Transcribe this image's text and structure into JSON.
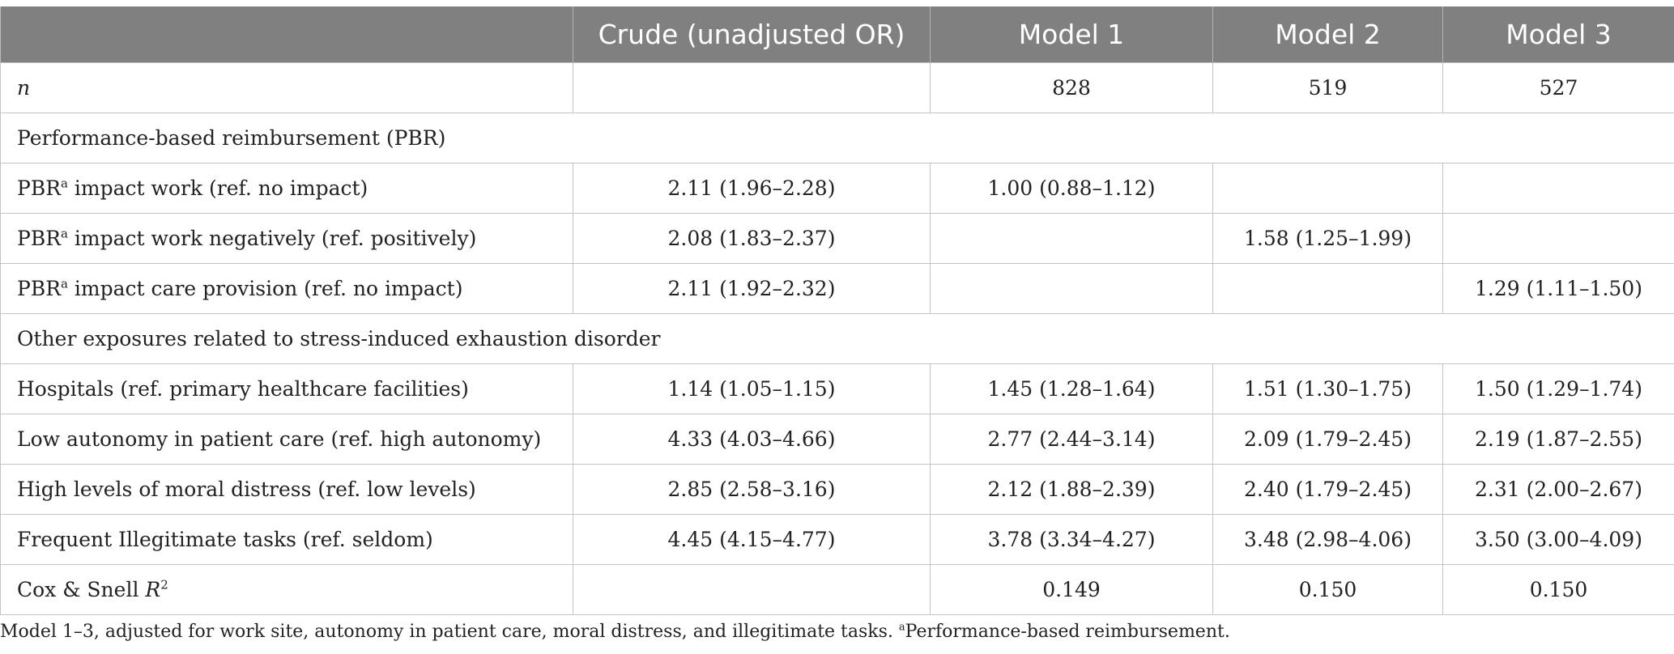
{
  "header": {
    "col0": "",
    "col1": "Crude (unadjusted OR)",
    "col2": "Model 1",
    "col3": "Model 2",
    "col4": "Model 3"
  },
  "n_row": {
    "label": "n",
    "crude": "",
    "model1": "828",
    "model2": "519",
    "model3": "527"
  },
  "section1": "Performance-based reimbursement (PBR)",
  "pbr_rows": [
    {
      "prefix": "PBR",
      "sup": "a",
      "label": " impact work (ref. no impact)",
      "crude": "2.11 (1.96–2.28)",
      "model1": "1.00 (0.88–1.12)",
      "model2": "",
      "model3": ""
    },
    {
      "prefix": "PBR",
      "sup": "a",
      "label": " impact work negatively (ref. positively)",
      "crude": "2.08 (1.83–2.37)",
      "model1": "",
      "model2": "1.58 (1.25–1.99)",
      "model3": ""
    },
    {
      "prefix": "PBR",
      "sup": "a",
      "label": " impact care provision (ref. no impact)",
      "crude": "2.11 (1.92–2.32)",
      "model1": "",
      "model2": "",
      "model3": "1.29 (1.11–1.50)"
    }
  ],
  "section2": "Other exposures related to stress-induced exhaustion disorder",
  "other_rows": [
    {
      "label": "Hospitals (ref. primary healthcare facilities)",
      "crude": "1.14 (1.05–1.15)",
      "model1": "1.45 (1.28–1.64)",
      "model2": "1.51 (1.30–1.75)",
      "model3": "1.50 (1.29–1.74)"
    },
    {
      "label": "Low autonomy in patient care (ref. high autonomy)",
      "crude": "4.33 (4.03–4.66)",
      "model1": "2.77 (2.44–3.14)",
      "model2": "2.09 (1.79–2.45)",
      "model3": "2.19 (1.87–2.55)"
    },
    {
      "label": "High levels of moral distress (ref. low levels)",
      "crude": "2.85 (2.58–3.16)",
      "model1": "2.12 (1.88–2.39)",
      "model2": "2.40 (1.79–2.45)",
      "model3": "2.31 (2.00–2.67)"
    },
    {
      "label": "Frequent Illegitimate tasks (ref. seldom)",
      "crude": "4.45 (4.15–4.77)",
      "model1": "3.78 (3.34–4.27)",
      "model2": "3.48 (2.98–4.06)",
      "model3": "3.50 (3.00–4.09)"
    }
  ],
  "r2_row": {
    "label": "Cox & Snell ",
    "label_italic": "R",
    "label_sup": "2",
    "crude": "",
    "model1": "0.149",
    "model2": "0.150",
    "model3": "0.150"
  },
  "footnote": {
    "text": "Model 1–3, adjusted for work site, autonomy in patient care, moral distress, and illegitimate tasks. ",
    "sup": "a",
    "tail": "Performance-based reimbursement."
  }
}
